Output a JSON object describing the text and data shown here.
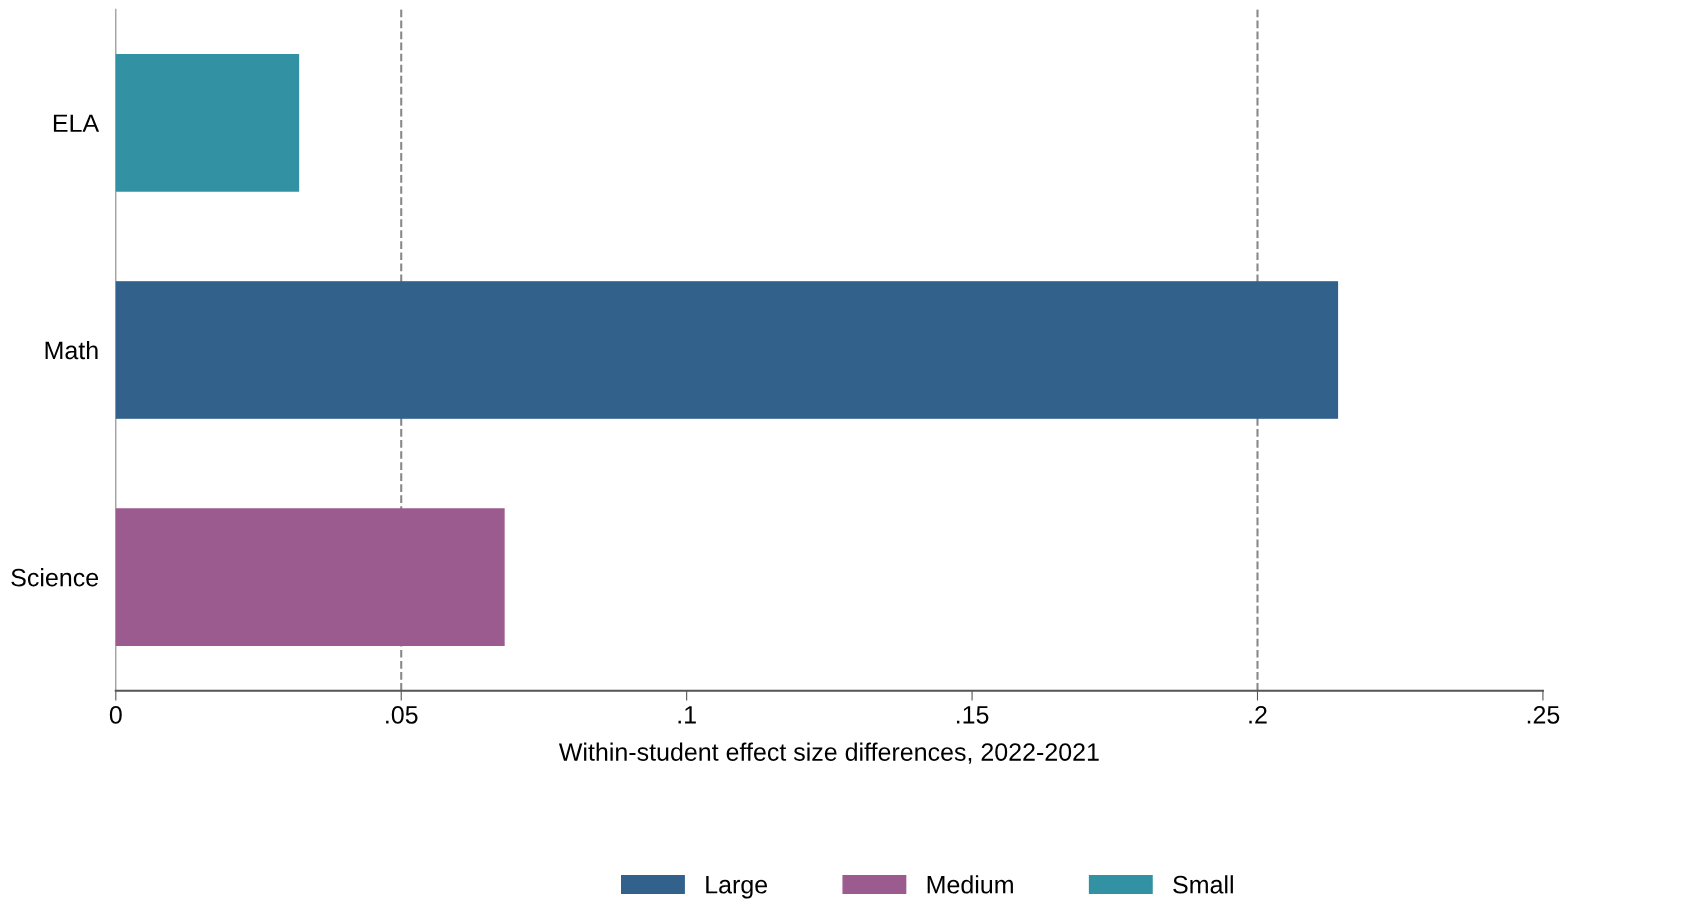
{
  "chart_data": {
    "type": "bar",
    "orientation": "horizontal",
    "xlabel": "Within-student effect size differences, 2022-2021",
    "categories": [
      "ELA",
      "Math",
      "Science"
    ],
    "series": [
      {
        "name": "Large",
        "color": "#32628c",
        "values": [
          null,
          0.214,
          null
        ]
      },
      {
        "name": "Medium",
        "color": "#9c5b8e",
        "values": [
          null,
          null,
          0.068
        ]
      },
      {
        "name": "Small",
        "color": "#3292a4",
        "values": [
          0.032,
          null,
          null
        ]
      }
    ],
    "xlim": [
      0,
      0.25
    ],
    "xticks": [
      0,
      {
        "value": 0.05,
        "label": ".05"
      },
      {
        "value": 0.1,
        "label": ".1"
      },
      {
        "value": 0.15,
        "label": ".15"
      },
      {
        "value": 0.2,
        "label": ".2"
      },
      {
        "value": 0.25,
        "label": ".25"
      }
    ],
    "ref_lines": [
      {
        "axis": "x",
        "value": 0.05,
        "color": "#888888",
        "line_style": "dashed"
      },
      {
        "axis": "x",
        "value": 0.2,
        "color": "#888888",
        "line_style": "dashed"
      }
    ],
    "grid": false,
    "legend": "bottom"
  }
}
